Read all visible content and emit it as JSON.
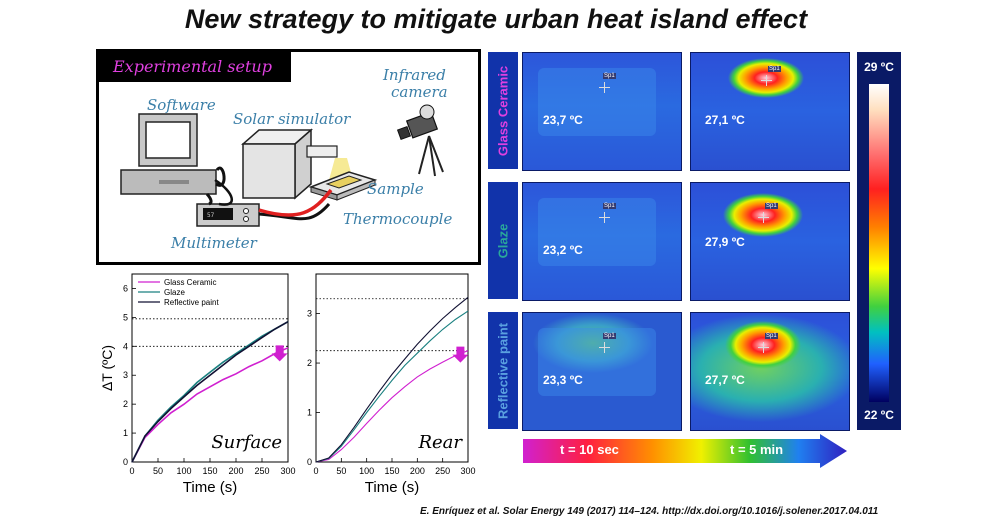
{
  "title": "New strategy to mitigate urban heat island effect",
  "setup": {
    "title": "Experimental setup",
    "labels": {
      "software": "Software",
      "solar_simulator": "Solar simulator",
      "infrared_camera_1": "Infrared",
      "infrared_camera_2": "camera",
      "sample": "Sample",
      "thermocouple": "Thermocouple",
      "multimeter": "Multimeter"
    }
  },
  "chart_data": [
    {
      "type": "line",
      "annotation": "Surface",
      "xlabel": "Time (s)",
      "ylabel": "ΔT (ºC)",
      "xlim": [
        0,
        300
      ],
      "ylim": [
        0,
        6.5
      ],
      "xticks": [
        "0",
        "50",
        "100",
        "150",
        "200",
        "250",
        "300"
      ],
      "yticks": [
        "0",
        "1",
        "2",
        "3",
        "4",
        "5",
        "6"
      ],
      "reference_lines": [
        4.95,
        4.0
      ],
      "legend": [
        "Glass Ceramic",
        "Glaze",
        "Reflective paint"
      ],
      "legend_position": "top-left",
      "series": [
        {
          "name": "Glass Ceramic",
          "color": "#d020d0",
          "x": [
            0,
            25,
            50,
            75,
            100,
            125,
            150,
            175,
            200,
            225,
            250,
            275,
            300
          ],
          "y": [
            0,
            0.85,
            1.3,
            1.7,
            2.0,
            2.35,
            2.6,
            2.85,
            3.05,
            3.3,
            3.5,
            3.75,
            3.95
          ]
        },
        {
          "name": "Glaze",
          "color": "#1a8080",
          "x": [
            0,
            25,
            50,
            75,
            100,
            125,
            150,
            175,
            200,
            225,
            250,
            275,
            300
          ],
          "y": [
            0,
            0.9,
            1.45,
            1.9,
            2.3,
            2.75,
            3.1,
            3.45,
            3.75,
            4.05,
            4.35,
            4.6,
            4.85
          ]
        },
        {
          "name": "Reflective paint",
          "color": "#111133",
          "x": [
            0,
            25,
            50,
            75,
            100,
            125,
            150,
            175,
            200,
            225,
            250,
            275,
            300
          ],
          "y": [
            0,
            0.9,
            1.4,
            1.85,
            2.25,
            2.65,
            3.0,
            3.35,
            3.7,
            4.0,
            4.3,
            4.6,
            4.85
          ]
        }
      ]
    },
    {
      "type": "line",
      "annotation": "Rear",
      "xlabel": "Time (s)",
      "ylabel": "",
      "xlim": [
        0,
        300
      ],
      "ylim": [
        0,
        3.8
      ],
      "xticks": [
        "0",
        "50",
        "100",
        "150",
        "200",
        "250",
        "300"
      ],
      "yticks": [
        "0",
        "1",
        "2",
        "3"
      ],
      "reference_lines": [
        3.3,
        2.25
      ],
      "series": [
        {
          "name": "Glass Ceramic",
          "color": "#d020d0",
          "x": [
            0,
            25,
            50,
            75,
            100,
            125,
            150,
            175,
            200,
            225,
            250,
            275,
            300
          ],
          "y": [
            0,
            0.05,
            0.25,
            0.5,
            0.78,
            1.05,
            1.3,
            1.52,
            1.72,
            1.88,
            2.02,
            2.15,
            2.25
          ]
        },
        {
          "name": "Glaze",
          "color": "#1a8080",
          "x": [
            0,
            25,
            50,
            75,
            100,
            125,
            150,
            175,
            200,
            225,
            250,
            275,
            300
          ],
          "y": [
            0,
            0.07,
            0.32,
            0.65,
            1.0,
            1.33,
            1.65,
            1.95,
            2.2,
            2.45,
            2.68,
            2.88,
            3.05
          ]
        },
        {
          "name": "Reflective paint",
          "color": "#111133",
          "x": [
            0,
            25,
            50,
            75,
            100,
            125,
            150,
            175,
            200,
            225,
            250,
            275,
            300
          ],
          "y": [
            0,
            0.08,
            0.35,
            0.7,
            1.07,
            1.43,
            1.77,
            2.08,
            2.38,
            2.65,
            2.9,
            3.12,
            3.33
          ]
        }
      ]
    }
  ],
  "thermography": {
    "rows": [
      {
        "label": "Glass Ceramic",
        "label_color": "#e040e0",
        "start_temp": "23,7 ºC",
        "end_temp": "27,1 ºC"
      },
      {
        "label": "Glaze",
        "label_color": "#2aa89a",
        "start_temp": "23,2 ºC",
        "end_temp": "27,9 ºC"
      },
      {
        "label": "Reflective paint",
        "label_color": "#5aa0e0",
        "start_temp": "23,3 ºC",
        "end_temp": "27,7 ºC"
      }
    ],
    "spot_label": "Sp1",
    "scale_max": "29 ºC",
    "scale_min": "22 ºC",
    "time_start": "t = 10 sec",
    "time_end": "t = 5 min"
  },
  "citation": "E. Enríquez et al. Solar Energy 149 (2017) 114–124. http://dx.doi.org/10.1016/j.solener.2017.04.011"
}
